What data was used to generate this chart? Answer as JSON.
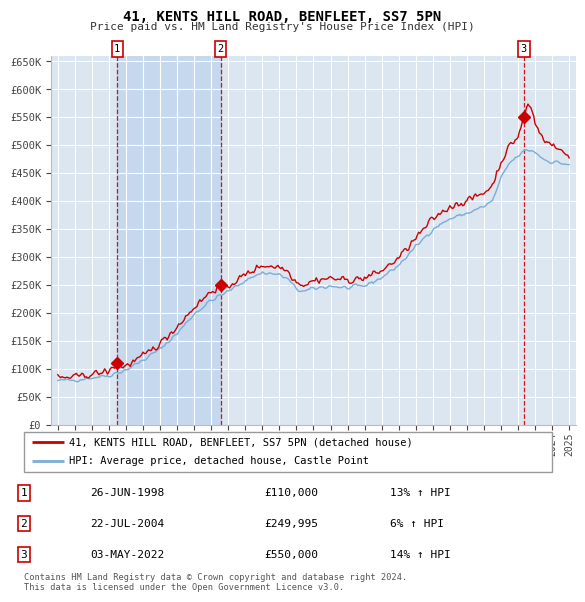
{
  "title1": "41, KENTS HILL ROAD, BENFLEET, SS7 5PN",
  "title2": "Price paid vs. HM Land Registry's House Price Index (HPI)",
  "ylabel_ticks": [
    "£0",
    "£50K",
    "£100K",
    "£150K",
    "£200K",
    "£250K",
    "£300K",
    "£350K",
    "£400K",
    "£450K",
    "£500K",
    "£550K",
    "£600K",
    "£650K"
  ],
  "ytick_values": [
    0,
    50000,
    100000,
    150000,
    200000,
    250000,
    300000,
    350000,
    400000,
    450000,
    500000,
    550000,
    600000,
    650000
  ],
  "xlim": [
    1994.6,
    2025.4
  ],
  "ylim": [
    0,
    660000
  ],
  "sale_dates": [
    1998.49,
    2004.56,
    2022.34
  ],
  "sale_prices": [
    110000,
    249995,
    550000
  ],
  "sale_labels": [
    "1",
    "2",
    "3"
  ],
  "legend_line1": "41, KENTS HILL ROAD, BENFLEET, SS7 5PN (detached house)",
  "legend_line2": "HPI: Average price, detached house, Castle Point",
  "table_data": [
    [
      "1",
      "26-JUN-1998",
      "£110,000",
      "13% ↑ HPI"
    ],
    [
      "2",
      "22-JUL-2004",
      "£249,995",
      "6% ↑ HPI"
    ],
    [
      "3",
      "03-MAY-2022",
      "£550,000",
      "14% ↑ HPI"
    ]
  ],
  "footer": "Contains HM Land Registry data © Crown copyright and database right 2024.\nThis data is licensed under the Open Government Licence v3.0.",
  "red_color": "#cc0000",
  "blue_color": "#7aaed6",
  "bg_color": "#dce6f1",
  "shade_color": "#c5d8ee"
}
